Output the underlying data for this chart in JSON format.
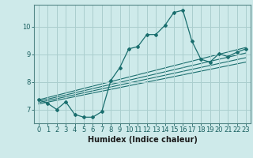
{
  "xlabel": "Humidex (Indice chaleur)",
  "bg_color": "#ceeaea",
  "grid_color": "#aacece",
  "line_color": "#1a6e6e",
  "xlim": [
    -0.5,
    23.5
  ],
  "ylim": [
    6.5,
    10.8
  ],
  "yticks": [
    7,
    8,
    9,
    10
  ],
  "xticks": [
    0,
    1,
    2,
    3,
    4,
    5,
    6,
    7,
    8,
    9,
    10,
    11,
    12,
    13,
    14,
    15,
    16,
    17,
    18,
    19,
    20,
    21,
    22,
    23
  ],
  "main_curve": [
    [
      0,
      7.35
    ],
    [
      1,
      7.22
    ],
    [
      2,
      7.0
    ],
    [
      3,
      7.28
    ],
    [
      4,
      6.82
    ],
    [
      5,
      6.72
    ],
    [
      6,
      6.72
    ],
    [
      7,
      6.92
    ],
    [
      8,
      8.05
    ],
    [
      9,
      8.52
    ],
    [
      10,
      9.2
    ],
    [
      11,
      9.28
    ],
    [
      12,
      9.72
    ],
    [
      13,
      9.72
    ],
    [
      14,
      10.05
    ],
    [
      15,
      10.52
    ],
    [
      16,
      10.6
    ],
    [
      17,
      9.48
    ],
    [
      18,
      8.82
    ],
    [
      19,
      8.72
    ],
    [
      20,
      9.02
    ],
    [
      21,
      8.92
    ],
    [
      22,
      9.08
    ],
    [
      23,
      9.2
    ]
  ],
  "linear_lines": [
    [
      [
        0,
        7.35
      ],
      [
        23,
        9.25
      ]
    ],
    [
      [
        0,
        7.3
      ],
      [
        23,
        9.05
      ]
    ],
    [
      [
        0,
        7.25
      ],
      [
        23,
        8.88
      ]
    ],
    [
      [
        0,
        7.2
      ],
      [
        23,
        8.72
      ]
    ]
  ],
  "xlabel_fontsize": 7,
  "tick_fontsize": 6
}
